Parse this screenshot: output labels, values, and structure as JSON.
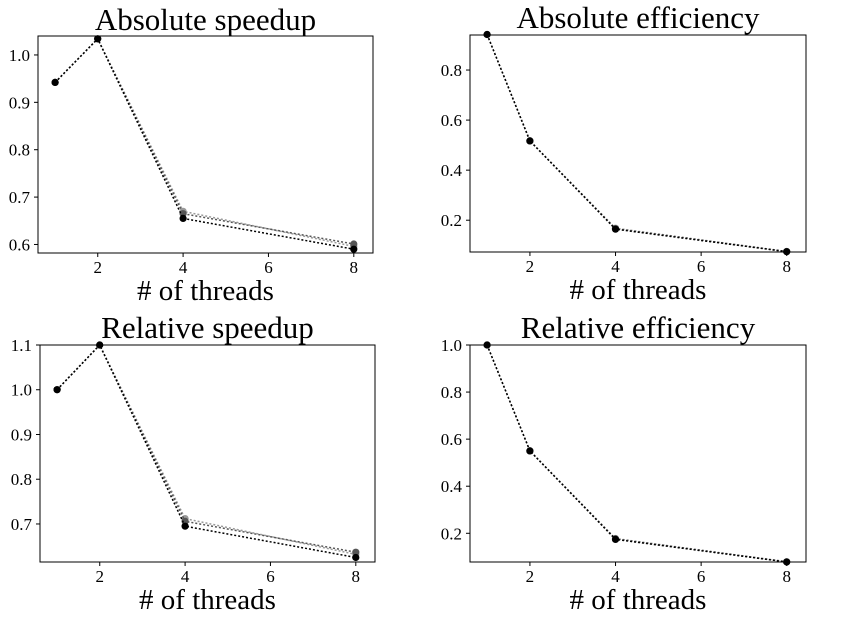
{
  "figure": {
    "colors": {
      "series_dark": "#000000",
      "series_mid": "#555555",
      "series_light": "#9a9a9a"
    }
  },
  "chart_data": [
    {
      "type": "line",
      "title": "Absolute speedup",
      "xlabel": "# of threads",
      "ylabel": "",
      "xlim": [
        0.6,
        8.45
      ],
      "ylim": [
        0.582,
        1.04
      ],
      "xticks": [
        2,
        4,
        6,
        8
      ],
      "yticks": [
        0.6,
        0.7,
        0.8,
        0.9,
        1.0
      ],
      "ytick_labels": [
        "0.6",
        "0.7",
        "0.8",
        "0.9",
        "1.0"
      ],
      "grid": false,
      "series": [
        {
          "color": "#000000",
          "points": [
            [
              1,
              0.942
            ],
            [
              2,
              1.034
            ],
            [
              4,
              0.655
            ],
            [
              8,
              0.59
            ]
          ]
        },
        {
          "color": "#555555",
          "points": [
            [
              1,
              0.942
            ],
            [
              2,
              1.034
            ],
            [
              4,
              0.665
            ],
            [
              8,
              0.601
            ]
          ]
        },
        {
          "color": "#9a9a9a",
          "points": [
            [
              1,
              0.942
            ],
            [
              2,
              1.034
            ],
            [
              4,
              0.67
            ],
            [
              8,
              0.596
            ]
          ]
        }
      ]
    },
    {
      "type": "line",
      "title": "Absolute efficiency",
      "xlabel": "# of threads",
      "ylabel": "",
      "xlim": [
        0.6,
        8.45
      ],
      "ylim": [
        0.073,
        0.94
      ],
      "xticks": [
        2,
        4,
        6,
        8
      ],
      "yticks": [
        0.2,
        0.4,
        0.6,
        0.8
      ],
      "ytick_labels": [
        "0.2",
        "0.4",
        "0.6",
        "0.8"
      ],
      "grid": false,
      "series": [
        {
          "color": "#000000",
          "points": [
            [
              1,
              0.942
            ],
            [
              2,
              0.517
            ],
            [
              4,
              0.164
            ],
            [
              8,
              0.074
            ]
          ]
        },
        {
          "color": "#555555",
          "points": [
            [
              1,
              0.942
            ],
            [
              2,
              0.517
            ],
            [
              4,
              0.166
            ],
            [
              8,
              0.075
            ]
          ]
        },
        {
          "color": "#9a9a9a",
          "points": [
            [
              1,
              0.942
            ],
            [
              2,
              0.517
            ],
            [
              4,
              0.168
            ],
            [
              8,
              0.075
            ]
          ]
        }
      ]
    },
    {
      "type": "line",
      "title": "Relative speedup",
      "xlabel": "# of threads",
      "ylabel": "",
      "xlim": [
        0.6,
        8.45
      ],
      "ylim": [
        0.615,
        1.1
      ],
      "xticks": [
        2,
        4,
        6,
        8
      ],
      "yticks": [
        0.7,
        0.8,
        0.9,
        1.0,
        1.1
      ],
      "ytick_labels": [
        "0.7",
        "0.8",
        "0.9",
        "1.0",
        "1.1"
      ],
      "grid": false,
      "series": [
        {
          "color": "#000000",
          "points": [
            [
              1,
              1.0
            ],
            [
              2,
              1.1
            ],
            [
              4,
              0.695
            ],
            [
              8,
              0.625
            ]
          ]
        },
        {
          "color": "#555555",
          "points": [
            [
              1,
              1.0
            ],
            [
              2,
              1.1
            ],
            [
              4,
              0.706
            ],
            [
              8,
              0.637
            ]
          ]
        },
        {
          "color": "#9a9a9a",
          "points": [
            [
              1,
              1.0
            ],
            [
              2,
              1.1
            ],
            [
              4,
              0.712
            ],
            [
              8,
              0.632
            ]
          ]
        }
      ]
    },
    {
      "type": "line",
      "title": "Relative efficiency",
      "xlabel": "# of threads",
      "ylabel": "",
      "xlim": [
        0.6,
        8.45
      ],
      "ylim": [
        0.078,
        1.0
      ],
      "xticks": [
        2,
        4,
        6,
        8
      ],
      "yticks": [
        0.2,
        0.4,
        0.6,
        0.8,
        1.0
      ],
      "ytick_labels": [
        "0.2",
        "0.4",
        "0.6",
        "0.8",
        "1.0"
      ],
      "grid": false,
      "series": [
        {
          "color": "#000000",
          "points": [
            [
              1,
              1.0
            ],
            [
              2,
              0.55
            ],
            [
              4,
              0.174
            ],
            [
              8,
              0.078
            ]
          ]
        },
        {
          "color": "#555555",
          "points": [
            [
              1,
              1.0
            ],
            [
              2,
              0.55
            ],
            [
              4,
              0.176
            ],
            [
              8,
              0.079
            ]
          ]
        },
        {
          "color": "#9a9a9a",
          "points": [
            [
              1,
              1.0
            ],
            [
              2,
              0.55
            ],
            [
              4,
              0.178
            ],
            [
              8,
              0.079
            ]
          ]
        }
      ]
    }
  ]
}
